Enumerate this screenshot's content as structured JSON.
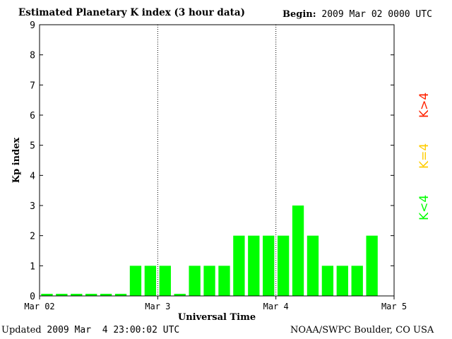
{
  "header": {
    "title": "Estimated Planetary K index (3 hour data)",
    "begin_label": "Begin:",
    "begin_value": "2009 Mar 02 0000 UTC"
  },
  "footer": {
    "updated_label": "Updated",
    "updated_value": "2009 Mar  4 23:00:02 UTC",
    "source": "NOAA/SWPC Boulder, CO USA"
  },
  "legend": [
    {
      "label": "K<4",
      "color": "#00ff00"
    },
    {
      "label": "K=4",
      "color": "#ffcc00"
    },
    {
      "label": "K>4",
      "color": "#ff2200"
    }
  ],
  "chart_data": {
    "type": "bar",
    "title": "Estimated Planetary K index (3 hour data)",
    "xlabel": "Universal Time",
    "ylabel": "Kp index",
    "ylim": [
      0,
      9
    ],
    "yticks": [
      0,
      1,
      2,
      3,
      4,
      5,
      6,
      7,
      8,
      9
    ],
    "xticks": [
      "Mar 02",
      "Mar 3",
      "Mar 4",
      "Mar 5"
    ],
    "day_separators": [
      "Mar 3",
      "Mar 4"
    ],
    "bar_color": "#00ff00",
    "categories": [
      "Mar 02 00-03",
      "Mar 02 03-06",
      "Mar 02 06-09",
      "Mar 02 09-12",
      "Mar 02 12-15",
      "Mar 02 15-18",
      "Mar 02 18-21",
      "Mar 02 21-24",
      "Mar 03 00-03",
      "Mar 03 03-06",
      "Mar 03 06-09",
      "Mar 03 09-12",
      "Mar 03 12-15",
      "Mar 03 15-18",
      "Mar 03 18-21",
      "Mar 03 21-24",
      "Mar 04 00-03",
      "Mar 04 03-06",
      "Mar 04 06-09",
      "Mar 04 09-12",
      "Mar 04 12-15",
      "Mar 04 15-18",
      "Mar 04 18-21"
    ],
    "values": [
      0,
      0,
      0,
      0,
      0,
      0,
      1,
      1,
      1,
      0,
      1,
      1,
      1,
      2,
      2,
      2,
      2,
      3,
      2,
      1,
      1,
      1,
      2
    ]
  }
}
